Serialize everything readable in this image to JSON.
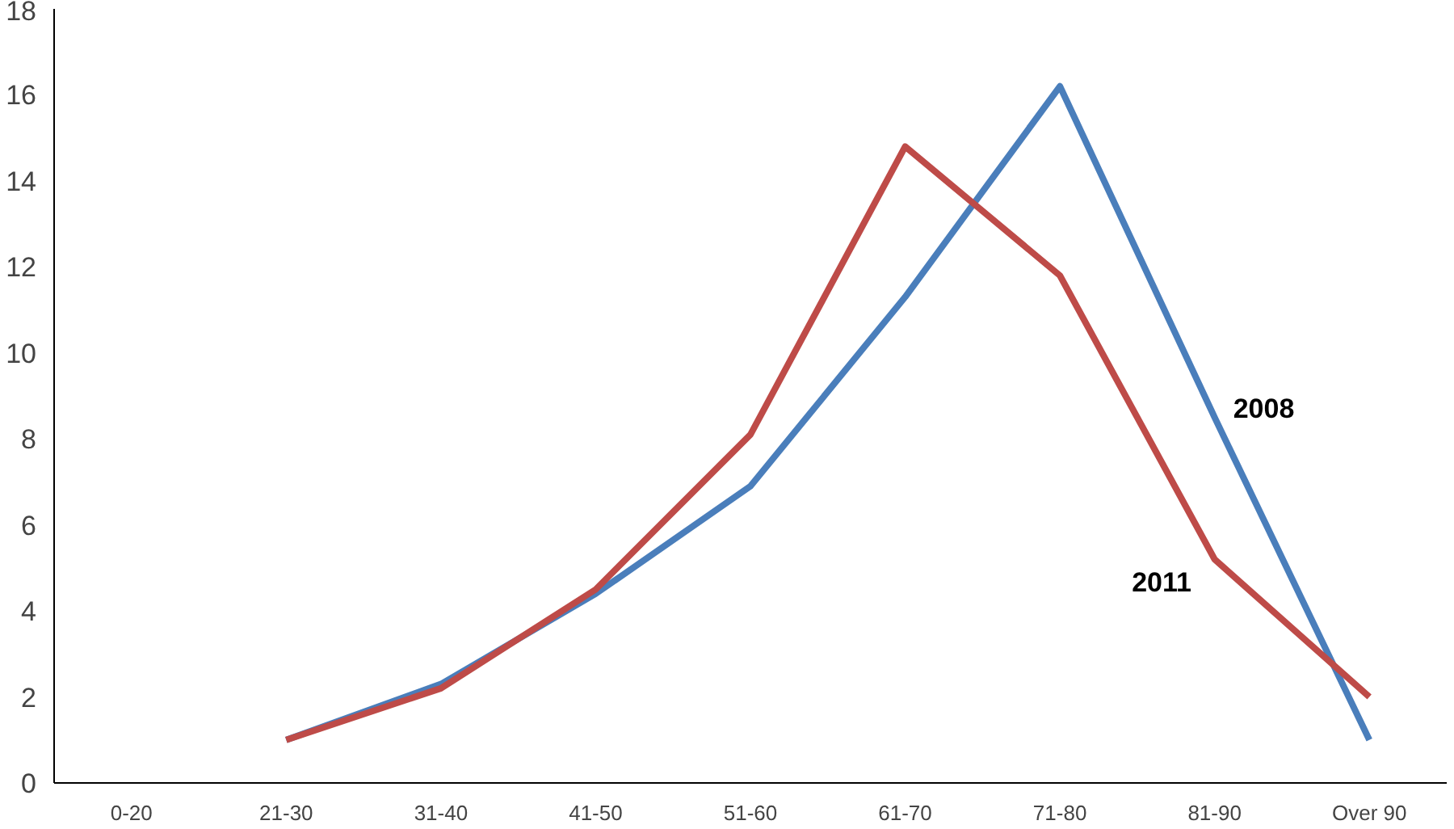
{
  "chart_data": {
    "type": "line",
    "categories": [
      "0-20",
      "21-30",
      "31-40",
      "41-50",
      "51-60",
      "61-70",
      "71-80",
      "81-90",
      "Over 90"
    ],
    "series": [
      {
        "name": "2008",
        "color": "#4a7ebb",
        "values": [
          null,
          1,
          2.3,
          4.4,
          6.9,
          11.3,
          16.2,
          8.5,
          1
        ]
      },
      {
        "name": "2011",
        "color": "#be4b48",
        "values": [
          null,
          1,
          2.2,
          4.5,
          8.1,
          14.8,
          11.8,
          5.2,
          2
        ]
      }
    ],
    "ylim": [
      0,
      18
    ],
    "yticks": [
      0,
      2,
      4,
      6,
      8,
      10,
      12,
      14,
      16,
      18
    ],
    "grid": false,
    "marker": "none",
    "line_style": "solid"
  }
}
